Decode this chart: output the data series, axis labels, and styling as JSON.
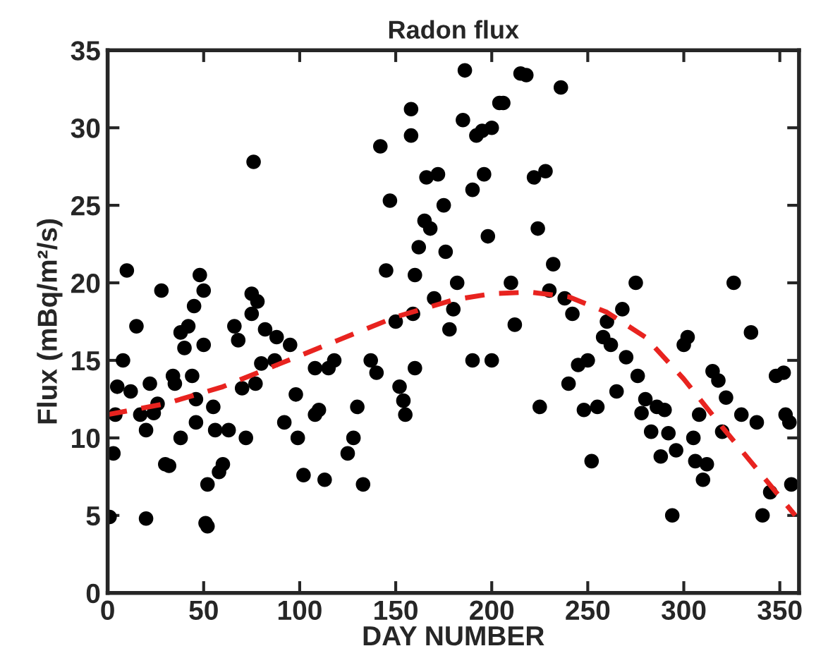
{
  "chart_data": {
    "type": "scatter",
    "title": "Radon flux",
    "xlabel": "DAY NUMBER",
    "ylabel": "Flux (mBq/m²/s)",
    "xlim": [
      0,
      360
    ],
    "xticks": [
      0,
      50,
      100,
      150,
      200,
      250,
      300,
      350
    ],
    "ylim": [
      0,
      35
    ],
    "yticks": [
      0,
      5,
      10,
      15,
      20,
      25,
      30,
      35
    ],
    "grid": false,
    "legend": false,
    "series": [
      {
        "marker": "circle",
        "color": "#000000",
        "x": [
          1,
          3,
          4,
          5,
          8,
          10,
          12,
          15,
          17,
          20,
          20,
          22,
          24,
          26,
          28,
          30,
          32,
          34,
          35,
          38,
          38,
          40,
          42,
          45,
          44,
          46,
          48,
          46,
          50,
          50,
          51,
          52,
          52,
          55,
          56,
          58,
          60,
          63,
          66,
          68,
          70,
          72,
          75,
          75,
          76,
          78,
          77,
          80,
          82,
          87,
          88,
          92,
          95,
          98,
          99,
          102,
          108,
          108,
          110,
          113,
          115,
          118,
          125,
          128,
          130,
          133,
          137,
          140,
          142,
          145,
          147,
          150,
          152,
          154,
          155,
          158,
          158,
          159,
          160,
          160,
          162,
          165,
          166,
          168,
          170,
          172,
          175,
          176,
          178,
          180,
          182,
          185,
          186,
          190,
          190,
          192,
          195,
          196,
          198,
          200,
          204,
          206,
          200,
          210,
          212,
          215,
          218,
          222,
          224,
          225,
          228,
          230,
          232,
          236,
          238,
          240,
          242,
          245,
          248,
          250,
          252,
          255,
          258,
          260,
          262,
          265,
          268,
          270,
          275,
          276,
          278,
          280,
          283,
          286,
          288,
          290,
          292,
          294,
          296,
          300,
          302,
          305,
          306,
          308,
          310,
          312,
          315,
          318,
          320,
          322,
          326,
          330,
          335,
          338,
          341,
          345,
          348,
          352,
          353,
          355,
          356
        ],
        "values": [
          4.9,
          9,
          11.5,
          13.3,
          15,
          20.8,
          13,
          17.2,
          11.5,
          10.5,
          4.8,
          13.5,
          11.6,
          12.2,
          19.5,
          8.3,
          8.2,
          14,
          13.5,
          16.8,
          10,
          15.8,
          17.2,
          18.5,
          14,
          12.5,
          20.5,
          11,
          19.5,
          16,
          4.5,
          4.3,
          7,
          12,
          10.5,
          7.8,
          8.3,
          10.5,
          17.2,
          16.3,
          13.2,
          10,
          19.3,
          18,
          27.8,
          18.8,
          13.5,
          14.8,
          17,
          15,
          16.5,
          11,
          16,
          12.8,
          10,
          7.6,
          14.5,
          11.5,
          11.8,
          7.3,
          14.5,
          15,
          9,
          10,
          12,
          7,
          15,
          14.2,
          28.8,
          20.8,
          25.3,
          17.5,
          13.3,
          12.4,
          11.5,
          31.2,
          29.5,
          18,
          14.5,
          20.5,
          22.3,
          24,
          26.8,
          23.5,
          19,
          27,
          25,
          22,
          17,
          18.3,
          20,
          30.5,
          33.7,
          26,
          15,
          29.5,
          29.8,
          27,
          23,
          30,
          31.6,
          31.6,
          15,
          20,
          17.3,
          33.5,
          33.4,
          26.8,
          23.5,
          12,
          27.2,
          19.5,
          21.2,
          32.6,
          19,
          13.5,
          18,
          14.7,
          11.8,
          15,
          8.5,
          12,
          16.5,
          17.5,
          16,
          13,
          18.3,
          15.2,
          20,
          14,
          11.6,
          12.5,
          10.4,
          12,
          8.8,
          11.8,
          10.3,
          5,
          9.2,
          16,
          16.5,
          10,
          8.5,
          11.5,
          7.3,
          8.3,
          14.3,
          13.7,
          10.4,
          12.6,
          20,
          11.5,
          16.8,
          11,
          5,
          6.5,
          14,
          14.2,
          11.5,
          11,
          7
        ]
      },
      {
        "type": "line",
        "line_style": "dashed",
        "color": "#e8231f",
        "x": [
          0,
          30,
          60,
          90,
          120,
          150,
          180,
          200,
          220,
          240,
          260,
          280,
          300,
          320,
          340,
          358
        ],
        "values": [
          11.5,
          12.2,
          13.3,
          14.8,
          16.3,
          17.8,
          18.9,
          19.3,
          19.4,
          19.1,
          18.1,
          16.5,
          13.8,
          10.7,
          7.7,
          5.0
        ]
      }
    ]
  }
}
